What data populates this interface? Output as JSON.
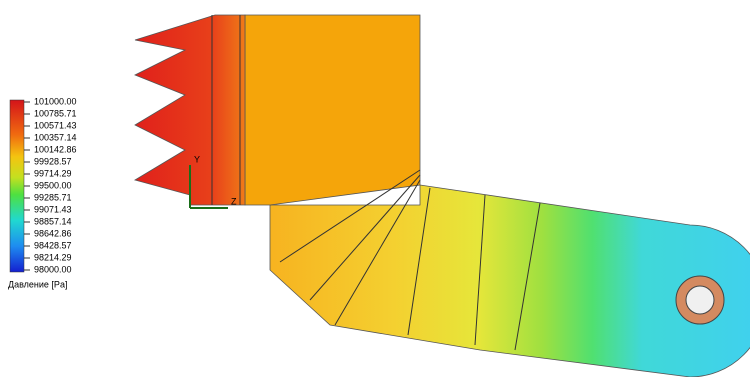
{
  "legend": {
    "title": "Давление [Pa]",
    "labels": [
      "101000.00",
      "100785.71",
      "100571.43",
      "100357.14",
      "100142.86",
      "99928.57",
      "99714.29",
      "99500.00",
      "99285.71",
      "99071.43",
      "98857.14",
      "98642.86",
      "98428.57",
      "98214.29",
      "98000.00"
    ]
  },
  "axes": {
    "y": "Y",
    "z": "Z"
  }
}
